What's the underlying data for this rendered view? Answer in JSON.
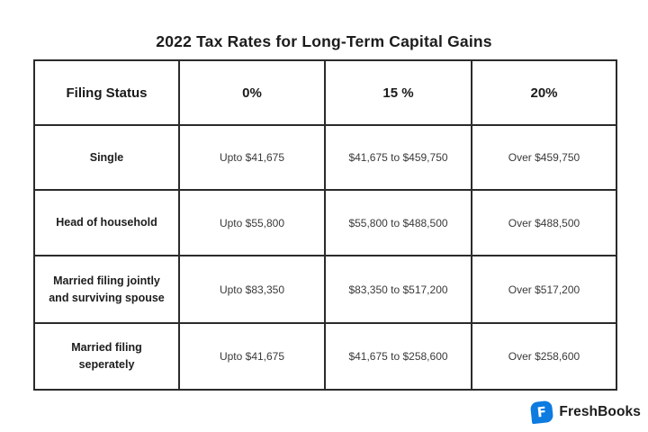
{
  "title": "2022 Tax Rates for Long-Term Capital Gains",
  "table": {
    "columns": [
      "Filing Status",
      "0%",
      "15 %",
      "20%"
    ],
    "rows": [
      [
        "Single",
        "Upto $41,675",
        "$41,675 to $459,750",
        "Over $459,750"
      ],
      [
        "Head of household",
        "Upto $55,800",
        "$55,800 to $488,500",
        "Over $488,500"
      ],
      [
        "Married filing jointly and surviving spouse",
        "Upto $83,350",
        "$83,350 to $517,200",
        "Over $517,200"
      ],
      [
        "Married filing seperately",
        "Upto $41,675",
        "$41,675 to $258,600",
        "Over $258,600"
      ]
    ]
  },
  "footer": {
    "brand": "FreshBooks",
    "logo_letter": "F",
    "brand_color": "#0d7be0"
  }
}
